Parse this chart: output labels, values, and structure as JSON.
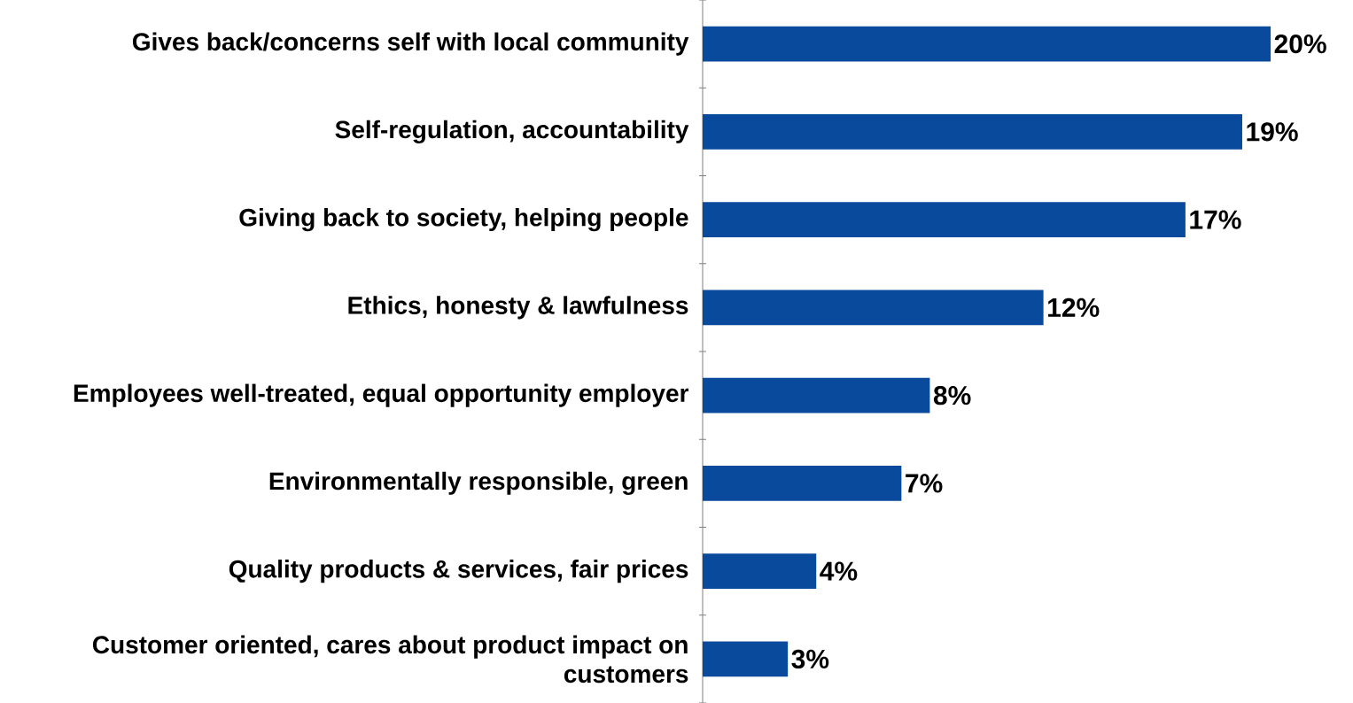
{
  "chart_data": {
    "type": "bar",
    "orientation": "horizontal",
    "categories": [
      "Gives back/concerns self with local community",
      "Self-regulation, accountability",
      "Giving back to society, helping people",
      "Ethics, honesty & lawfulness",
      "Employees well-treated, equal opportunity employer",
      "Environmentally responsible, green",
      "Quality products & services, fair prices",
      "Customer oriented, cares about product impact on customers"
    ],
    "values": [
      20,
      19,
      17,
      12,
      8,
      7,
      4,
      3
    ],
    "value_labels": [
      "20%",
      "19%",
      "17%",
      "12%",
      "8%",
      "7%",
      "4%",
      "3%"
    ],
    "color": "#0a4a9c"
  }
}
